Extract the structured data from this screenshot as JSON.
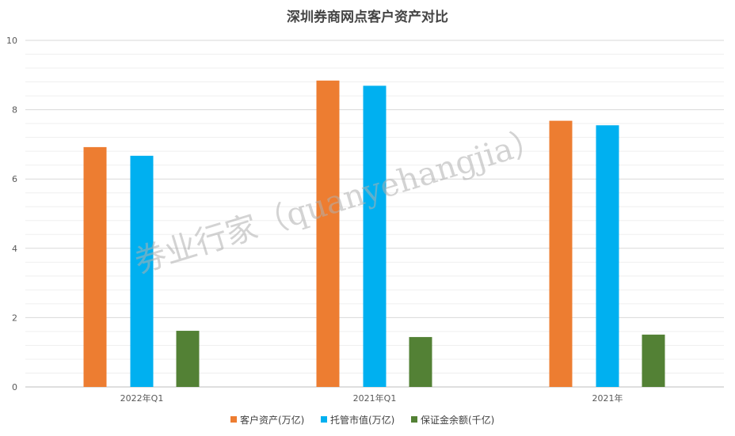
{
  "chart_data": {
    "type": "bar",
    "title": "深圳券商网点客户资产对比",
    "categories": [
      "2022年Q1",
      "2021年Q1",
      "2021年"
    ],
    "series": [
      {
        "name": "客户资产(万亿)",
        "color": "#ED7D31",
        "values": [
          6.92,
          8.84,
          7.68
        ]
      },
      {
        "name": "托管市值(万亿)",
        "color": "#00B0F0",
        "values": [
          6.67,
          8.69,
          7.55
        ]
      },
      {
        "name": "保证金余额(千亿)",
        "color": "#538135",
        "values": [
          1.62,
          1.44,
          1.51
        ]
      }
    ],
    "ylim": [
      0,
      10
    ],
    "yticks": [
      0,
      2,
      4,
      6,
      8,
      10
    ],
    "grid": true,
    "legend": "bottom",
    "watermark": "券业行家（quanyehangjia）"
  }
}
